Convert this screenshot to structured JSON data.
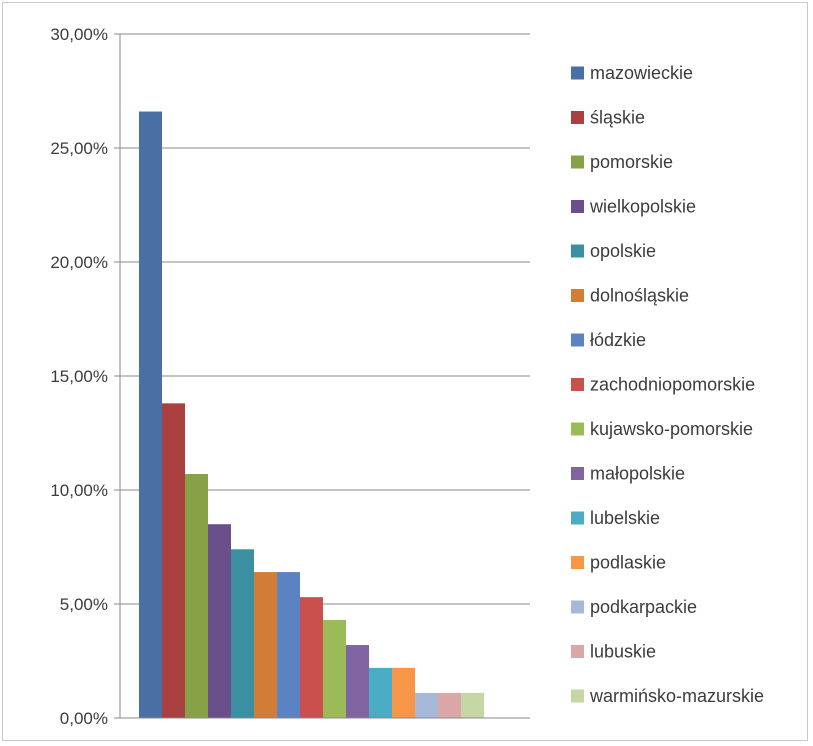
{
  "chart_data": {
    "type": "bar",
    "title": "",
    "xlabel": "",
    "ylabel": "",
    "ylim": [
      0,
      30
    ],
    "y_ticks": [
      "0,00%",
      "5,00%",
      "10,00%",
      "15,00%",
      "20,00%",
      "25,00%",
      "30,00%"
    ],
    "grid": true,
    "legend_position": "right",
    "series": [
      {
        "name": "mazowieckie",
        "value": 26.6,
        "color": "#4a6fa5"
      },
      {
        "name": "śląskie",
        "value": 13.8,
        "color": "#a9403f"
      },
      {
        "name": "pomorskie",
        "value": 10.7,
        "color": "#86a146"
      },
      {
        "name": "wielkopolskie",
        "value": 8.5,
        "color": "#6b4f8a"
      },
      {
        "name": "opolskie",
        "value": 7.4,
        "color": "#3a8fa3"
      },
      {
        "name": "dolnośląskie",
        "value": 6.4,
        "color": "#d27d35"
      },
      {
        "name": "łódzkie",
        "value": 6.4,
        "color": "#5b82c2"
      },
      {
        "name": "zachodniopomorskie",
        "value": 5.3,
        "color": "#c9504d"
      },
      {
        "name": "kujawsko-pomorskie",
        "value": 4.3,
        "color": "#9bbb59"
      },
      {
        "name": "małopolskie",
        "value": 3.2,
        "color": "#8064a2"
      },
      {
        "name": "lubelskie",
        "value": 2.2,
        "color": "#4bacc6"
      },
      {
        "name": "podlaskie",
        "value": 2.2,
        "color": "#f79646"
      },
      {
        "name": "podkarpackie",
        "value": 1.1,
        "color": "#a7b9d9"
      },
      {
        "name": "lubuskie",
        "value": 1.1,
        "color": "#dba6a6"
      },
      {
        "name": "warmińsko-mazurskie",
        "value": 1.1,
        "color": "#c4d7a4"
      }
    ]
  }
}
